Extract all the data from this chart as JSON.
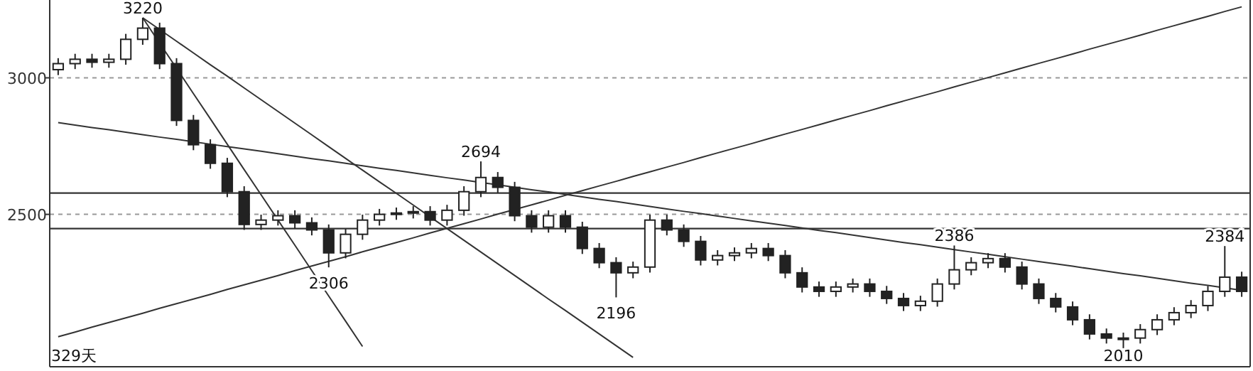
{
  "chart_data": {
    "type": "candlestick",
    "color": "#222222",
    "ylim": [
      1942,
      3285
    ],
    "yticks": [
      2500,
      3000
    ],
    "grid": "y",
    "categories": [
      null,
      null,
      null,
      null,
      null,
      null,
      null,
      null,
      null,
      null,
      null,
      null,
      null,
      null,
      null,
      null,
      null,
      null,
      null,
      null,
      null,
      null,
      null,
      null,
      null,
      null,
      null,
      null,
      null,
      null,
      null,
      null,
      null,
      null,
      null,
      null,
      null,
      null,
      null,
      null,
      null,
      null,
      null,
      null,
      null,
      null,
      null,
      null,
      null,
      null,
      null,
      null,
      null,
      null,
      null,
      null,
      null,
      null,
      null,
      null,
      null,
      null,
      null,
      null,
      null,
      null,
      null,
      null,
      null,
      null,
      null
    ],
    "ohlc": [
      [
        3030,
        3072,
        3010,
        3052
      ],
      [
        3052,
        3088,
        3032,
        3068
      ],
      [
        3068,
        3088,
        3037,
        3057
      ],
      [
        3057,
        3088,
        3037,
        3068
      ],
      [
        3068,
        3161,
        3048,
        3141
      ],
      [
        3141,
        3220,
        3121,
        3182
      ],
      [
        3182,
        3202,
        3032,
        3052
      ],
      [
        3052,
        3072,
        2824,
        2844
      ],
      [
        2844,
        2864,
        2735,
        2755
      ],
      [
        2755,
        2775,
        2667,
        2687
      ],
      [
        2687,
        2707,
        2563,
        2583
      ],
      [
        2583,
        2603,
        2443,
        2463
      ],
      [
        2463,
        2499,
        2443,
        2479
      ],
      [
        2479,
        2515,
        2459,
        2495
      ],
      [
        2495,
        2515,
        2449,
        2469
      ],
      [
        2469,
        2489,
        2423,
        2443
      ],
      [
        2443,
        2463,
        2306,
        2359
      ],
      [
        2359,
        2447,
        2339,
        2427
      ],
      [
        2427,
        2499,
        2407,
        2479
      ],
      [
        2479,
        2520,
        2459,
        2500
      ],
      [
        2500,
        2525,
        2480,
        2505
      ],
      [
        2505,
        2530,
        2485,
        2510
      ],
      [
        2510,
        2530,
        2459,
        2479
      ],
      [
        2479,
        2535,
        2459,
        2515
      ],
      [
        2515,
        2603,
        2495,
        2583
      ],
      [
        2583,
        2694,
        2563,
        2635
      ],
      [
        2635,
        2655,
        2579,
        2599
      ],
      [
        2599,
        2619,
        2475,
        2495
      ],
      [
        2495,
        2515,
        2433,
        2453
      ],
      [
        2453,
        2515,
        2433,
        2495
      ],
      [
        2495,
        2515,
        2433,
        2453
      ],
      [
        2453,
        2473,
        2355,
        2375
      ],
      [
        2375,
        2395,
        2303,
        2323
      ],
      [
        2323,
        2343,
        2196,
        2286
      ],
      [
        2286,
        2327,
        2266,
        2307
      ],
      [
        2307,
        2499,
        2287,
        2479
      ],
      [
        2479,
        2499,
        2423,
        2443
      ],
      [
        2443,
        2463,
        2381,
        2401
      ],
      [
        2401,
        2421,
        2313,
        2333
      ],
      [
        2333,
        2369,
        2313,
        2349
      ],
      [
        2349,
        2379,
        2329,
        2359
      ],
      [
        2359,
        2395,
        2339,
        2375
      ],
      [
        2375,
        2395,
        2329,
        2349
      ],
      [
        2349,
        2369,
        2266,
        2286
      ],
      [
        2286,
        2306,
        2214,
        2234
      ],
      [
        2234,
        2254,
        2198,
        2218
      ],
      [
        2218,
        2254,
        2198,
        2234
      ],
      [
        2234,
        2265,
        2214,
        2245
      ],
      [
        2245,
        2265,
        2198,
        2218
      ],
      [
        2218,
        2238,
        2172,
        2192
      ],
      [
        2192,
        2212,
        2146,
        2166
      ],
      [
        2166,
        2202,
        2146,
        2182
      ],
      [
        2182,
        2265,
        2162,
        2245
      ],
      [
        2245,
        2386,
        2225,
        2297
      ],
      [
        2297,
        2343,
        2277,
        2323
      ],
      [
        2323,
        2358,
        2303,
        2338
      ],
      [
        2338,
        2358,
        2287,
        2307
      ],
      [
        2307,
        2327,
        2225,
        2245
      ],
      [
        2245,
        2265,
        2172,
        2192
      ],
      [
        2192,
        2212,
        2141,
        2161
      ],
      [
        2161,
        2181,
        2094,
        2114
      ],
      [
        2114,
        2134,
        2042,
        2062
      ],
      [
        2062,
        2082,
        2027,
        2047
      ],
      [
        2047,
        2067,
        2010,
        2047
      ],
      [
        2047,
        2098,
        2027,
        2078
      ],
      [
        2078,
        2134,
        2058,
        2114
      ],
      [
        2114,
        2160,
        2094,
        2140
      ],
      [
        2140,
        2186,
        2120,
        2166
      ],
      [
        2166,
        2238,
        2146,
        2218
      ],
      [
        2218,
        2384,
        2198,
        2270
      ],
      [
        2270,
        2290,
        2198,
        2218
      ]
    ],
    "series": [
      {
        "type": "line",
        "color": "#333333",
        "values": [
          2052,
          2069,
          2087,
          2104,
          2121,
          2138,
          2156,
          2173,
          2190,
          2207,
          2225,
          2242,
          2259,
          2276,
          2294,
          2311,
          2328,
          2345,
          2363,
          2380,
          2397,
          2414,
          2432,
          2449,
          2466,
          2483,
          2501,
          2518,
          2535,
          2552,
          2570,
          2587,
          2604,
          2621,
          2639,
          2656,
          2673,
          2690,
          2708,
          2725,
          2742,
          2759,
          2777,
          2794,
          2811,
          2828,
          2846,
          2863,
          2880,
          2898,
          2915,
          2932,
          2949,
          2967,
          2984,
          3001,
          3018,
          3036,
          3053,
          3070,
          3087,
          3105,
          3122,
          3139,
          3156,
          3174,
          3191,
          3208,
          3225,
          3243,
          3260
        ]
      },
      {
        "type": "line",
        "color": "#333333",
        "values": [
          2836,
          2827,
          2818,
          2810,
          2801,
          2792,
          2783,
          2775,
          2766,
          2757,
          2748,
          2740,
          2731,
          2722,
          2713,
          2704,
          2696,
          2687,
          2678,
          2669,
          2661,
          2652,
          2643,
          2634,
          2626,
          2617,
          2608,
          2599,
          2590,
          2582,
          2573,
          2564,
          2555,
          2547,
          2538,
          2529,
          2520,
          2511,
          2503,
          2494,
          2485,
          2476,
          2468,
          2459,
          2450,
          2441,
          2433,
          2424,
          2415,
          2406,
          2397,
          2389,
          2380,
          2371,
          2362,
          2354,
          2345,
          2336,
          2327,
          2319,
          2310,
          2301,
          2292,
          2283,
          2275,
          2266,
          2257,
          2248,
          2240,
          2231,
          2222
        ]
      },
      {
        "type": "line",
        "color": "#333333",
        "values": [
          null,
          null,
          null,
          null,
          null,
          3220,
          3177,
          3134,
          3091,
          3048,
          3006,
          2963,
          2920,
          2877,
          2834,
          2791,
          2748,
          2705,
          2662,
          2619,
          2577,
          2534,
          2491,
          2448,
          2405,
          2362,
          2319,
          2276,
          2233,
          2190,
          2148,
          2105,
          2062,
          2019,
          1976,
          null,
          null,
          null,
          null,
          null,
          null,
          null,
          null,
          null,
          null,
          null,
          null,
          null,
          null,
          null,
          null,
          null,
          null,
          null,
          null,
          null,
          null,
          null,
          null,
          null,
          null,
          null,
          null,
          null,
          null,
          null,
          null,
          null,
          null,
          null,
          null
        ]
      },
      {
        "type": "line",
        "color": "#333333",
        "values": [
          null,
          null,
          null,
          null,
          null,
          3220,
          3127,
          3035,
          2942,
          2850,
          2757,
          2664,
          2572,
          2479,
          2387,
          2294,
          2201,
          2109,
          2016,
          null,
          null,
          null,
          null,
          null,
          null,
          null,
          null,
          null,
          null,
          null,
          null,
          null,
          null,
          null,
          null,
          null,
          null,
          null,
          null,
          null,
          null,
          null,
          null,
          null,
          null,
          null,
          null,
          null,
          null,
          null,
          null,
          null,
          null,
          null,
          null,
          null,
          null,
          null,
          null,
          null,
          null,
          null,
          null,
          null,
          null,
          null,
          null,
          null,
          null,
          null,
          null
        ]
      }
    ],
    "ref_lines": [
      {
        "axis": "y",
        "value": 2578,
        "color": "#333333"
      },
      {
        "axis": "y",
        "value": 2448,
        "color": "#333333"
      }
    ],
    "annotations": [
      {
        "text": "3220",
        "y": 3220
      },
      {
        "text": "2306",
        "y": 2306
      },
      {
        "text": "2694",
        "y": 2694
      },
      {
        "text": "2196",
        "y": 2196
      },
      {
        "text": "2386",
        "y": 2386
      },
      {
        "text": "2010",
        "y": 2010
      },
      {
        "text": "2384",
        "y": 2384
      },
      "329天"
    ]
  }
}
